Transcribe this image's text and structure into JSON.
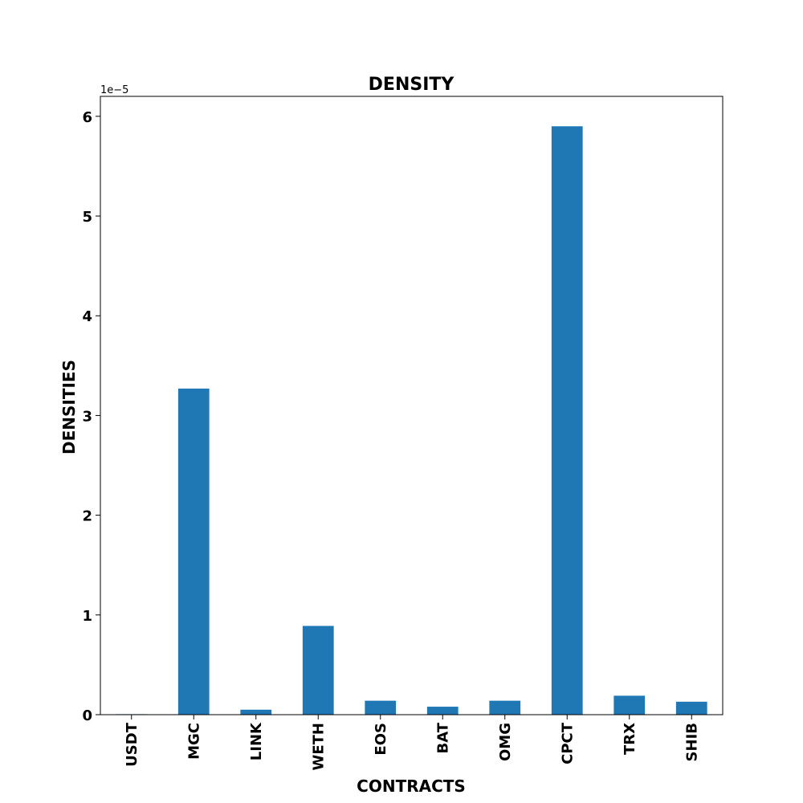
{
  "chart_data": {
    "type": "bar",
    "title": "DENSITY",
    "xlabel": "CONTRACTS",
    "ylabel": "DENSITIES",
    "y_offset_label": "1e−5",
    "y_scale": 1e-05,
    "categories": [
      "USDT",
      "MGC",
      "LINK",
      "WETH",
      "EOS",
      "BAT",
      "OMG",
      "CPCT",
      "TRX",
      "SHIB"
    ],
    "values": [
      5e-08,
      3.27e-05,
      5e-07,
      8.9e-06,
      1.4e-06,
      8e-07,
      1.4e-06,
      5.9e-05,
      1.9e-06,
      1.3e-06
    ],
    "ylim": [
      0,
      6.2e-05
    ],
    "yticks": [
      0,
      1e-05,
      2e-05,
      3e-05,
      4e-05,
      5e-05,
      6e-05
    ],
    "ytick_labels": [
      "0",
      "1",
      "2",
      "3",
      "4",
      "5",
      "6"
    ],
    "bar_color": "#1f77b4",
    "grid": false,
    "legend": "none"
  }
}
